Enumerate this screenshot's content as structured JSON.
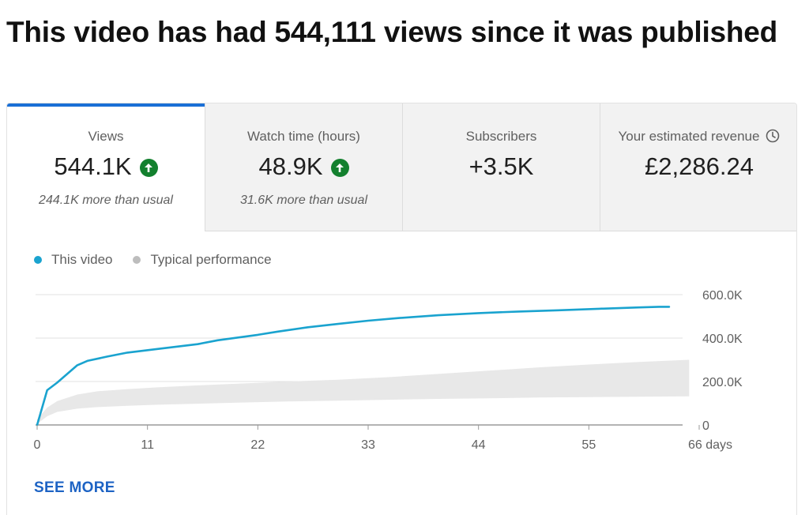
{
  "headline": "This video has had 544,111 views since it was published",
  "tabs": [
    {
      "label": "Views",
      "value": "544.1K",
      "note": "244.1K more than usual",
      "trend": "up"
    },
    {
      "label": "Watch time (hours)",
      "value": "48.9K",
      "note": "31.6K more than usual",
      "trend": "up"
    },
    {
      "label": "Subscribers",
      "value": "+3.5K",
      "note": "",
      "trend": ""
    },
    {
      "label": "Your estimated revenue",
      "value": "£2,286.24",
      "note": "",
      "trend": "",
      "icon": "clock-icon"
    }
  ],
  "colors": {
    "this_video": "#1aa3cf",
    "typical": "#bdbdbd",
    "typical_band": "#e8e8e8",
    "trend_up": "#13802e",
    "accent": "#1a6fd6",
    "link": "#1d63c4"
  },
  "see_more_label": "SEE MORE",
  "chart_data": {
    "type": "line",
    "title": "",
    "xlabel": "",
    "ylabel": "",
    "x_ticks": [
      0,
      11,
      22,
      33,
      44,
      55,
      66
    ],
    "x_tick_labels": [
      "0",
      "11",
      "22",
      "33",
      "44",
      "55",
      "66 days"
    ],
    "y_ticks": [
      0,
      200000,
      400000,
      600000
    ],
    "y_tick_labels": [
      "0",
      "200.0K",
      "400.0K",
      "600.0K"
    ],
    "xlim": [
      0,
      66
    ],
    "ylim": [
      0,
      600000
    ],
    "grid": true,
    "legend_position": "top-left",
    "series": [
      {
        "name": "This video",
        "x": [
          0,
          1,
          2,
          3,
          4,
          5,
          7,
          9,
          12,
          16,
          18,
          22,
          24,
          27,
          30,
          33,
          36,
          40,
          44,
          48,
          52,
          56,
          60,
          62,
          63
        ],
        "y": [
          0,
          160000,
          195000,
          235000,
          275000,
          295000,
          315000,
          333000,
          350000,
          372000,
          390000,
          415000,
          430000,
          450000,
          465000,
          480000,
          492000,
          505000,
          515000,
          522000,
          528000,
          535000,
          541000,
          544000,
          544100
        ]
      }
    ],
    "band": {
      "name": "Typical performance",
      "x": [
        0,
        1,
        2,
        4,
        6,
        9,
        12,
        16,
        20,
        25,
        30,
        35,
        40,
        45,
        50,
        55,
        60,
        65
      ],
      "upper": [
        25000,
        80000,
        110000,
        140000,
        155000,
        165000,
        173000,
        182000,
        190000,
        200000,
        208000,
        220000,
        235000,
        250000,
        265000,
        278000,
        290000,
        300000
      ],
      "lower": [
        5000,
        40000,
        60000,
        75000,
        82000,
        88000,
        93000,
        98000,
        103000,
        108000,
        112000,
        116000,
        120000,
        123000,
        126000,
        128000,
        130000,
        132000
      ]
    }
  }
}
